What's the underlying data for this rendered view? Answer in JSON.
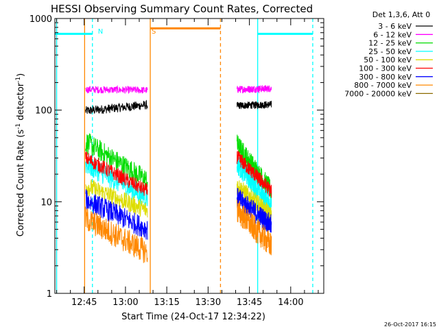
{
  "chart_data": {
    "type": "line",
    "title": "HESSI Observing Summary Count Rates, Corrected",
    "xlabel": "Start Time (24-Oct-17 12:34:22)",
    "ylabel": "Corrected Count Rate (s⁻¹ detector⁻¹)",
    "ylabel_main": "Corrected Count Rate (s",
    "ylabel_sup1": "-1",
    "ylabel_mid": " detector",
    "ylabel_sup2": "-1",
    "ylabel_close": ")",
    "yscale": "log",
    "xlim": [
      "12:34:22",
      "14:12:00"
    ],
    "ylim": [
      1,
      1000
    ],
    "x_ticks": [
      "12:45",
      "13:00",
      "13:15",
      "13:30",
      "13:45",
      "14:00"
    ],
    "y_ticks": [
      {
        "value": 1,
        "label": "1"
      },
      {
        "value": 10,
        "label": "10"
      },
      {
        "value": 100,
        "label": "100"
      },
      {
        "value": 1000,
        "label": "1000"
      }
    ],
    "legend_title": "Det 1,3,6, Att 0",
    "legend_position": "right",
    "series": [
      {
        "name": "3 - 6 keV",
        "color": "#000000",
        "segments": [
          {
            "start": "12:45:30",
            "end": "13:08:00",
            "v0": 98,
            "v1": 114,
            "noise": 0.05
          },
          {
            "start": "13:40:30",
            "end": "13:53:00",
            "v0": 112,
            "v1": 115,
            "noise": 0.04
          }
        ]
      },
      {
        "name": "6 - 12 keV",
        "color": "#ff00ff",
        "segments": [
          {
            "start": "12:45:30",
            "end": "13:08:00",
            "v0": 168,
            "v1": 165,
            "noise": 0.04
          },
          {
            "start": "13:40:30",
            "end": "13:53:00",
            "v0": 168,
            "v1": 172,
            "noise": 0.04
          }
        ]
      },
      {
        "name": "12 - 25 keV",
        "color": "#00dd00",
        "segments": [
          {
            "start": "12:45:30",
            "end": "13:08:00",
            "v0": 45,
            "v1": 17,
            "noise": 0.12
          },
          {
            "start": "13:40:30",
            "end": "13:53:00",
            "v0": 42,
            "v1": 13,
            "noise": 0.12
          }
        ]
      },
      {
        "name": "25 - 50 keV",
        "color": "#00ffff",
        "segments": [
          {
            "start": "12:45:30",
            "end": "13:08:00",
            "v0": 26,
            "v1": 11,
            "noise": 0.12
          },
          {
            "start": "13:40:30",
            "end": "13:53:00",
            "v0": 26,
            "v1": 9,
            "noise": 0.12
          }
        ]
      },
      {
        "name": "50 - 100 keV",
        "color": "#dddd00",
        "segments": [
          {
            "start": "12:45:30",
            "end": "13:08:00",
            "v0": 15,
            "v1": 8,
            "noise": 0.1
          },
          {
            "start": "13:40:30",
            "end": "13:53:00",
            "v0": 15,
            "v1": 7,
            "noise": 0.1
          }
        ]
      },
      {
        "name": "100 - 300 keV",
        "color": "#ff0000",
        "segments": [
          {
            "start": "12:45:30",
            "end": "13:08:00",
            "v0": 30,
            "v1": 13,
            "noise": 0.08
          },
          {
            "start": "13:40:30",
            "end": "13:53:00",
            "v0": 31,
            "v1": 13,
            "noise": 0.08
          }
        ]
      },
      {
        "name": "300 - 800 keV",
        "color": "#0000ff",
        "segments": [
          {
            "start": "12:45:30",
            "end": "13:08:00",
            "v0": 10.5,
            "v1": 5,
            "noise": 0.12
          },
          {
            "start": "13:40:30",
            "end": "13:53:00",
            "v0": 11,
            "v1": 5.5,
            "noise": 0.12
          }
        ]
      },
      {
        "name": "800 - 7000 keV",
        "color": "#ff8800",
        "segments": [
          {
            "start": "12:45:30",
            "end": "13:08:00",
            "v0": 6.5,
            "v1": 2.8,
            "noise": 0.14
          },
          {
            "start": "13:40:30",
            "end": "13:53:00",
            "v0": 8,
            "v1": 3.3,
            "noise": 0.14
          }
        ]
      },
      {
        "name": "7000 - 20000 keV",
        "color": "#8b6a00",
        "segments": []
      }
    ],
    "night_bars": [
      {
        "start": "12:34:22",
        "end": "12:48:00",
        "value": 680
      },
      {
        "start": "13:48:00",
        "end": "14:08:00",
        "value": 680
      }
    ],
    "saa_bars": [
      {
        "start": "13:09:00",
        "end": "13:34:30",
        "value": 780
      }
    ],
    "night_lines": [
      {
        "time": "12:35:00",
        "style": "solid"
      },
      {
        "time": "12:48:00",
        "style": "dashed"
      },
      {
        "time": "13:48:00",
        "style": "solid"
      },
      {
        "time": "14:08:00",
        "style": "dashed"
      }
    ],
    "saa_lines": [
      {
        "time": "12:45:10",
        "style": "solid"
      },
      {
        "time": "13:09:00",
        "style": "solid"
      },
      {
        "time": "13:34:30",
        "style": "dashed"
      }
    ],
    "markers": [
      {
        "label": "N",
        "time": "12:48:30",
        "color": "#00ffff"
      },
      {
        "label": "S",
        "time": "13:08:00",
        "color": "#ff8800"
      }
    ],
    "footer_timestamp": "26-Oct-2017 16:15"
  },
  "colors": {
    "night": "#00ffff",
    "saa": "#ff8800",
    "axes": "#000000",
    "background": "#ffffff"
  }
}
